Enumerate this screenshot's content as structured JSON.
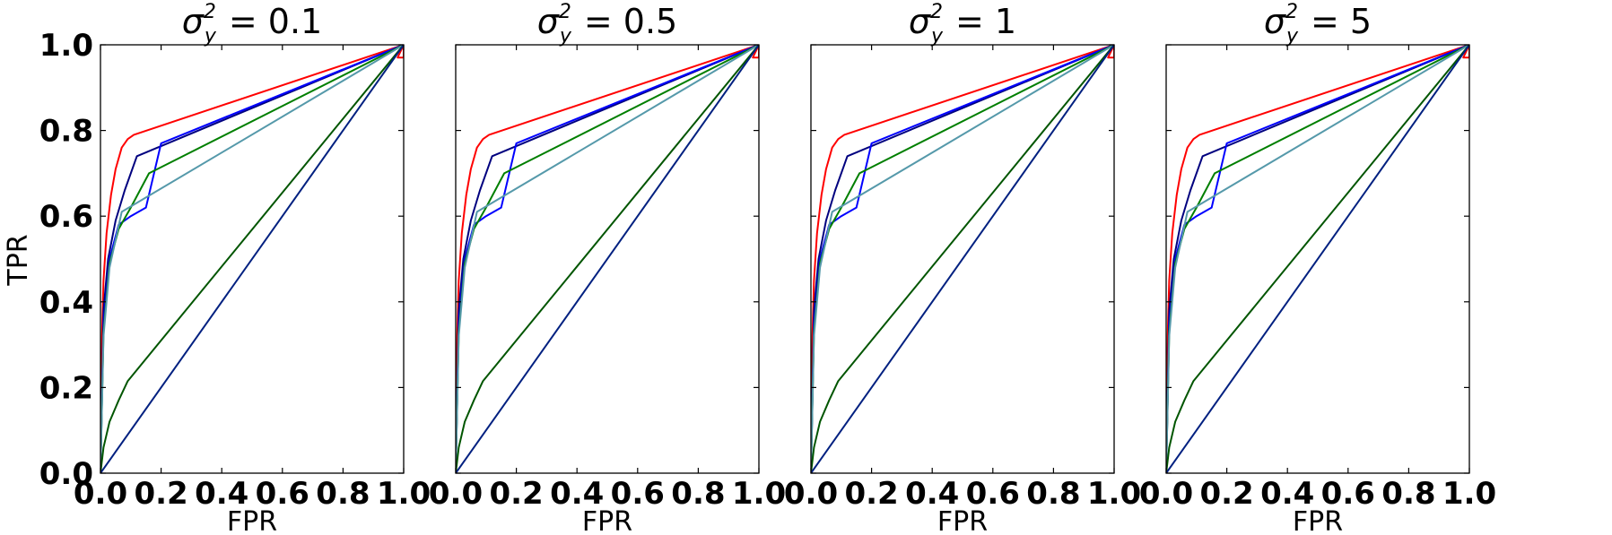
{
  "chart_data": {
    "type": "line",
    "ylabel": "TPR",
    "xlabel": "FPR",
    "xlim": [
      0,
      1
    ],
    "ylim": [
      0,
      1
    ],
    "grid": false,
    "xticks": [
      "0.0",
      "0.2",
      "0.4",
      "0.6",
      "0.8",
      "1.0"
    ],
    "yticks": [
      "0.0",
      "0.2",
      "0.4",
      "0.6",
      "0.8",
      "1.0"
    ],
    "series_colors": [
      "#ff0000",
      "#00007f",
      "#0000ff",
      "#007f00",
      "#5599aa",
      "#005500",
      "#002080"
    ],
    "panels": [
      {
        "title_base": "σ",
        "title_sup": "2",
        "title_sub": "y",
        "title_value": "= 0.1",
        "series": [
          {
            "color": "#ff0000",
            "x": [
              0,
              0.005,
              0.01,
              0.02,
              0.035,
              0.05,
              0.07,
              0.09,
              0.11,
              1.0,
              1.0,
              0.98,
              1.0
            ],
            "y": [
              0,
              0.32,
              0.45,
              0.56,
              0.65,
              0.71,
              0.76,
              0.78,
              0.79,
              1.0,
              0.97,
              0.97,
              1.0
            ]
          },
          {
            "color": "#00007f",
            "x": [
              0,
              0.01,
              0.025,
              0.05,
              0.08,
              0.12,
              1.0
            ],
            "y": [
              0,
              0.38,
              0.5,
              0.59,
              0.66,
              0.74,
              1.0
            ]
          },
          {
            "color": "#0000ff",
            "x": [
              0,
              0.01,
              0.03,
              0.06,
              0.1,
              0.15,
              0.2,
              1.0
            ],
            "y": [
              0,
              0.35,
              0.5,
              0.58,
              0.6,
              0.62,
              0.77,
              1.0
            ]
          },
          {
            "color": "#007f00",
            "x": [
              0,
              0.01,
              0.03,
              0.06,
              0.1,
              0.16,
              1.0
            ],
            "y": [
              0,
              0.33,
              0.49,
              0.57,
              0.62,
              0.7,
              1.0
            ]
          },
          {
            "color": "#5599aa",
            "x": [
              0,
              0.01,
              0.03,
              0.07,
              1.0
            ],
            "y": [
              0,
              0.32,
              0.48,
              0.61,
              1.0
            ]
          },
          {
            "color": "#005500",
            "x": [
              0,
              0.01,
              0.03,
              0.06,
              0.09,
              1.0
            ],
            "y": [
              0,
              0.06,
              0.12,
              0.17,
              0.215,
              1.0
            ]
          },
          {
            "color": "#002080",
            "x": [
              0,
              1.0
            ],
            "y": [
              0,
              1.0
            ]
          }
        ]
      },
      {
        "title_base": "σ",
        "title_sup": "2",
        "title_sub": "y",
        "title_value": "= 0.5",
        "series": [
          {
            "color": "#ff0000",
            "x": [
              0,
              0.005,
              0.01,
              0.02,
              0.035,
              0.05,
              0.07,
              0.09,
              0.11,
              1.0,
              1.0,
              0.98,
              1.0
            ],
            "y": [
              0,
              0.32,
              0.45,
              0.56,
              0.65,
              0.71,
              0.76,
              0.78,
              0.79,
              1.0,
              0.97,
              0.97,
              1.0
            ]
          },
          {
            "color": "#00007f",
            "x": [
              0,
              0.01,
              0.025,
              0.05,
              0.08,
              0.12,
              1.0
            ],
            "y": [
              0,
              0.38,
              0.5,
              0.59,
              0.66,
              0.74,
              1.0
            ]
          },
          {
            "color": "#0000ff",
            "x": [
              0,
              0.01,
              0.03,
              0.06,
              0.1,
              0.15,
              0.2,
              1.0
            ],
            "y": [
              0,
              0.35,
              0.5,
              0.58,
              0.6,
              0.62,
              0.77,
              1.0
            ]
          },
          {
            "color": "#007f00",
            "x": [
              0,
              0.01,
              0.03,
              0.06,
              0.1,
              0.16,
              1.0
            ],
            "y": [
              0,
              0.33,
              0.49,
              0.57,
              0.62,
              0.7,
              1.0
            ]
          },
          {
            "color": "#5599aa",
            "x": [
              0,
              0.01,
              0.03,
              0.07,
              1.0
            ],
            "y": [
              0,
              0.32,
              0.48,
              0.61,
              1.0
            ]
          },
          {
            "color": "#005500",
            "x": [
              0,
              0.01,
              0.03,
              0.06,
              0.09,
              1.0
            ],
            "y": [
              0,
              0.06,
              0.12,
              0.17,
              0.215,
              1.0
            ]
          },
          {
            "color": "#002080",
            "x": [
              0,
              1.0
            ],
            "y": [
              0,
              1.0
            ]
          }
        ]
      },
      {
        "title_base": "σ",
        "title_sup": "2",
        "title_sub": "y",
        "title_value": "= 1",
        "series": [
          {
            "color": "#ff0000",
            "x": [
              0,
              0.005,
              0.01,
              0.02,
              0.035,
              0.05,
              0.07,
              0.09,
              0.11,
              1.0,
              1.0,
              0.98,
              1.0
            ],
            "y": [
              0,
              0.32,
              0.45,
              0.56,
              0.65,
              0.71,
              0.76,
              0.78,
              0.79,
              1.0,
              0.97,
              0.97,
              1.0
            ]
          },
          {
            "color": "#00007f",
            "x": [
              0,
              0.01,
              0.025,
              0.05,
              0.08,
              0.12,
              1.0
            ],
            "y": [
              0,
              0.38,
              0.5,
              0.59,
              0.66,
              0.74,
              1.0
            ]
          },
          {
            "color": "#0000ff",
            "x": [
              0,
              0.01,
              0.03,
              0.06,
              0.1,
              0.15,
              0.2,
              1.0
            ],
            "y": [
              0,
              0.35,
              0.5,
              0.58,
              0.6,
              0.62,
              0.77,
              1.0
            ]
          },
          {
            "color": "#007f00",
            "x": [
              0,
              0.01,
              0.03,
              0.06,
              0.1,
              0.16,
              1.0
            ],
            "y": [
              0,
              0.33,
              0.49,
              0.57,
              0.62,
              0.7,
              1.0
            ]
          },
          {
            "color": "#5599aa",
            "x": [
              0,
              0.01,
              0.03,
              0.07,
              1.0
            ],
            "y": [
              0,
              0.32,
              0.48,
              0.61,
              1.0
            ]
          },
          {
            "color": "#005500",
            "x": [
              0,
              0.01,
              0.03,
              0.06,
              0.09,
              1.0
            ],
            "y": [
              0,
              0.06,
              0.12,
              0.17,
              0.215,
              1.0
            ]
          },
          {
            "color": "#002080",
            "x": [
              0,
              1.0
            ],
            "y": [
              0,
              1.0
            ]
          }
        ]
      },
      {
        "title_base": "σ",
        "title_sup": "2",
        "title_sub": "y",
        "title_value": "= 5",
        "series": [
          {
            "color": "#ff0000",
            "x": [
              0,
              0.005,
              0.01,
              0.02,
              0.035,
              0.05,
              0.07,
              0.09,
              0.11,
              1.0,
              1.0,
              0.98,
              1.0
            ],
            "y": [
              0,
              0.32,
              0.45,
              0.56,
              0.65,
              0.71,
              0.76,
              0.78,
              0.79,
              1.0,
              0.97,
              0.97,
              1.0
            ]
          },
          {
            "color": "#00007f",
            "x": [
              0,
              0.01,
              0.025,
              0.05,
              0.08,
              0.12,
              1.0
            ],
            "y": [
              0,
              0.38,
              0.5,
              0.59,
              0.66,
              0.74,
              1.0
            ]
          },
          {
            "color": "#0000ff",
            "x": [
              0,
              0.01,
              0.03,
              0.06,
              0.1,
              0.15,
              0.2,
              1.0
            ],
            "y": [
              0,
              0.35,
              0.5,
              0.58,
              0.6,
              0.62,
              0.77,
              1.0
            ]
          },
          {
            "color": "#007f00",
            "x": [
              0,
              0.01,
              0.03,
              0.06,
              0.1,
              0.16,
              1.0
            ],
            "y": [
              0,
              0.33,
              0.49,
              0.57,
              0.62,
              0.7,
              1.0
            ]
          },
          {
            "color": "#5599aa",
            "x": [
              0,
              0.01,
              0.03,
              0.07,
              1.0
            ],
            "y": [
              0,
              0.32,
              0.48,
              0.61,
              1.0
            ]
          },
          {
            "color": "#005500",
            "x": [
              0,
              0.01,
              0.03,
              0.06,
              0.09,
              1.0
            ],
            "y": [
              0,
              0.06,
              0.12,
              0.17,
              0.215,
              1.0
            ]
          },
          {
            "color": "#002080",
            "x": [
              0,
              1.0
            ],
            "y": [
              0,
              1.0
            ]
          }
        ]
      }
    ]
  }
}
